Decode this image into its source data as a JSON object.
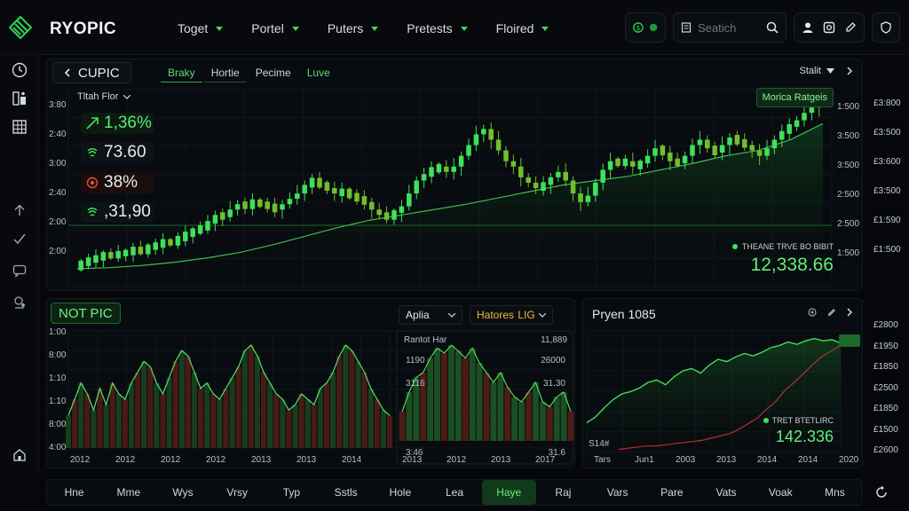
{
  "brand": {
    "name": "RYOPIC"
  },
  "nav": [
    {
      "label": "Toget"
    },
    {
      "label": "Portel"
    },
    {
      "label": "Puters"
    },
    {
      "label": "Pretests"
    },
    {
      "label": "Floired"
    }
  ],
  "search": {
    "placeholder": "Seatich"
  },
  "main": {
    "title": "CUPIC",
    "tabs": [
      {
        "label": "Braky",
        "active": true
      },
      {
        "label": "Hortie",
        "active": false
      },
      {
        "label": "Pecime",
        "active": false
      },
      {
        "label": "Luve",
        "active": false
      }
    ],
    "right_select": "Stalit",
    "badge": "Morica Ratgeis",
    "mini_select": "Tltah Flor",
    "stats": [
      {
        "value": "1,36%",
        "icon": "trend-up-icon"
      },
      {
        "value": "73.60",
        "icon": "signal-icon"
      },
      {
        "value": "38%",
        "icon": "alert-icon"
      },
      {
        "value": ",31,90",
        "icon": "signal-icon"
      }
    ],
    "y_left": [
      "3:80",
      "2:40",
      "3:00",
      "2:40",
      "2:00",
      "2:00"
    ],
    "y_right_inner": [
      "1:500",
      "3:500",
      "3:500",
      "2:500",
      "2:500",
      "1:500"
    ],
    "y_right_outer": [
      "£3:800",
      "£3:500",
      "£3:600",
      "£3:500",
      "£1:590",
      "£1:500"
    ],
    "legend": "THEANE TRVE BO BIBIT",
    "big_value": "12,338.66",
    "accent": "#3fe05a",
    "chart_data": {
      "type": "candlestick",
      "series": [
        {
          "name": "price",
          "ohlc_close": [
            2.05,
            2.08,
            2.1,
            2.13,
            2.12,
            2.14,
            2.15,
            2.18,
            2.16,
            2.2,
            2.22,
            2.25,
            2.24,
            2.28,
            2.32,
            2.35,
            2.38,
            2.42,
            2.5,
            2.48,
            2.55,
            2.6,
            2.58,
            2.62,
            2.6,
            2.58,
            2.55,
            2.6,
            2.65,
            2.7,
            2.78,
            2.82,
            2.78,
            2.75,
            2.7,
            2.72,
            2.68,
            2.65,
            2.62,
            2.55,
            2.5,
            2.48,
            2.52,
            2.58,
            2.7,
            2.82,
            2.88,
            2.92,
            2.95,
            2.9,
            2.95,
            3.05,
            3.15,
            3.25,
            3.3,
            3.2,
            3.1,
            3.0,
            2.95,
            2.85,
            2.8,
            2.75,
            2.78,
            2.85,
            2.9,
            2.82,
            2.7,
            2.62,
            2.68,
            2.8,
            2.92,
            3.0,
            2.98,
            3.0,
            2.95,
            2.98,
            3.05,
            3.12,
            3.08,
            3.0,
            2.98,
            3.05,
            3.15,
            3.2,
            3.12,
            3.08,
            3.15,
            3.22,
            3.18,
            3.15,
            3.1,
            3.05,
            3.12,
            3.2,
            3.28,
            3.32,
            3.38,
            3.45,
            3.5,
            3.55
          ]
        },
        {
          "name": "average",
          "values": [
            2.0,
            2.01,
            2.03,
            2.06,
            2.1,
            2.15,
            2.22,
            2.3,
            2.38,
            2.45,
            2.5,
            2.55,
            2.6,
            2.66,
            2.72,
            2.78,
            2.82,
            2.86,
            2.92,
            2.98,
            3.05,
            3.1,
            3.2,
            3.35
          ]
        }
      ]
    }
  },
  "bottom_left": {
    "title": "NOT PIC",
    "select1": "Aplia",
    "select2": "Hatores",
    "select2_tag": "LIG",
    "inner_label": "Rantot Har",
    "inner_val": "11,889",
    "inner_left_vals": [
      "1190",
      "3116",
      "3:46"
    ],
    "inner_right_vals": [
      "26000",
      "31.30",
      "31.6"
    ],
    "y_left": [
      "1:00",
      "8:00",
      "1:10",
      "1:10",
      "8:00",
      "4:00"
    ],
    "x_labels": [
      "2012",
      "2012",
      "2012",
      "2012",
      "2013",
      "2013",
      "2014"
    ],
    "x_labels_inner": [
      "2013",
      "2012",
      "2013",
      "2017"
    ],
    "chart_data": {
      "type": "area",
      "series": [
        {
          "name": "a",
          "values": [
            0.3,
            0.45,
            0.6,
            0.5,
            0.35,
            0.55,
            0.4,
            0.6,
            0.5,
            0.45,
            0.6,
            0.7,
            0.8,
            0.75,
            0.6,
            0.5,
            0.65,
            0.8,
            0.9,
            0.85,
            0.7,
            0.55,
            0.6,
            0.5,
            0.45,
            0.55,
            0.65,
            0.75,
            0.9,
            0.95,
            0.85,
            0.7,
            0.6,
            0.5,
            0.45,
            0.35,
            0.4,
            0.5,
            0.45,
            0.4,
            0.55,
            0.6,
            0.7,
            0.85,
            0.95,
            0.9,
            0.8,
            0.7,
            0.55,
            0.45,
            0.35,
            0.3
          ]
        },
        {
          "name": "b",
          "values": [
            0.3,
            0.5,
            0.65,
            0.7,
            0.85,
            0.95,
            0.9,
            0.98,
            0.92,
            0.85,
            0.95,
            0.8,
            0.7,
            0.6,
            0.7,
            0.55,
            0.45,
            0.4,
            0.5,
            0.6,
            0.4,
            0.35,
            0.45,
            0.5,
            0.3
          ]
        }
      ]
    }
  },
  "bottom_right": {
    "title": "Pryen 1085",
    "y_right": [
      "£2800",
      "£1950",
      "£1850",
      "£2500",
      "£1850",
      "£1500",
      "£2600"
    ],
    "legend": "TRET BTETLIRC",
    "big_value": "142.336",
    "mini_label": "S14#",
    "x_labels": [
      "Tars",
      "Jun1",
      "2003",
      "2013",
      "2014",
      "2014",
      "2020"
    ],
    "chart_data": {
      "type": "line",
      "series": [
        {
          "name": "green",
          "values": [
            0.25,
            0.3,
            0.38,
            0.45,
            0.5,
            0.52,
            0.55,
            0.6,
            0.62,
            0.58,
            0.65,
            0.7,
            0.72,
            0.68,
            0.75,
            0.8,
            0.78,
            0.82,
            0.85,
            0.83,
            0.86,
            0.9,
            0.92,
            0.95,
            0.93,
            0.96,
            0.98,
            0.96,
            0.97,
            0.94
          ]
        },
        {
          "name": "red",
          "values": [
            0.02,
            0.03,
            0.04,
            0.05,
            0.05,
            0.06,
            0.07,
            0.08,
            0.09,
            0.1,
            0.12,
            0.14,
            0.16,
            0.2,
            0.25,
            0.3,
            0.38,
            0.45,
            0.55,
            0.62,
            0.7,
            0.78,
            0.85,
            0.9,
            0.95
          ]
        }
      ]
    }
  },
  "bottom_bar": [
    {
      "label": "Hne"
    },
    {
      "label": "Mme"
    },
    {
      "label": "Wys"
    },
    {
      "label": "Vrsy"
    },
    {
      "label": "Typ"
    },
    {
      "label": "Sstls"
    },
    {
      "label": "Hole"
    },
    {
      "label": "Lea"
    },
    {
      "label": "Haye",
      "active": true
    },
    {
      "label": "Raj"
    },
    {
      "label": "Vars"
    },
    {
      "label": "Pare"
    },
    {
      "label": "Vats"
    },
    {
      "label": "Voak"
    },
    {
      "label": "Mns"
    }
  ]
}
